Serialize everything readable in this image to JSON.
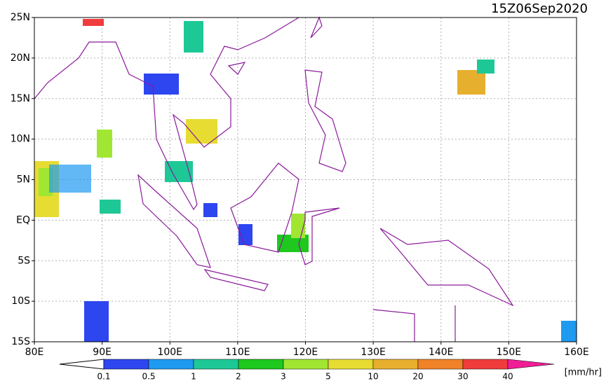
{
  "title": "15Z06Sep2020",
  "lon_labels": [
    "80E",
    "90E",
    "100E",
    "110E",
    "120E",
    "130E",
    "140E",
    "150E",
    "160E"
  ],
  "lat_labels": [
    "25N",
    "20N",
    "15N",
    "10N",
    "5N",
    "EQ",
    "5S",
    "10S",
    "15S"
  ],
  "colorbar": {
    "labels": [
      "0.1",
      "0.5",
      "1",
      "2",
      "3",
      "5",
      "10",
      "20",
      "30",
      "40"
    ],
    "colors": [
      "#ffffff",
      "#2d46f0",
      "#1e9af0",
      "#1ec896",
      "#1ec81e",
      "#a0e632",
      "#e6dc32",
      "#e6af2d",
      "#f08228",
      "#f03c3c",
      "#f01e96"
    ],
    "units": "[mm/hr]"
  }
}
